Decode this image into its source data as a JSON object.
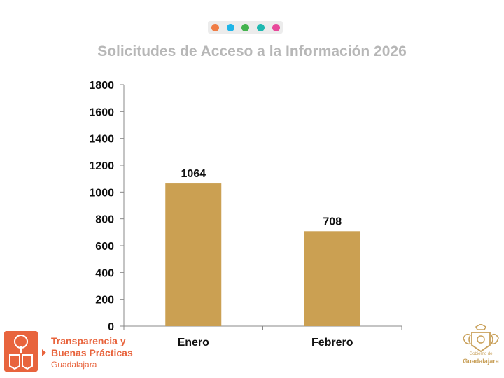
{
  "header": {
    "dot_colors": [
      "#f07d45",
      "#1fb5e8",
      "#44b34e",
      "#1eb8b0",
      "#e8489a"
    ]
  },
  "chart_data": {
    "type": "bar",
    "title": "Solicitudes de Acceso a la Información 2026",
    "categories": [
      "Enero",
      "Febrero"
    ],
    "values": [
      1064,
      708
    ],
    "bar_color": "#cba052",
    "ylim": [
      0,
      1800
    ],
    "yticks": [
      0,
      200,
      400,
      600,
      800,
      1000,
      1200,
      1400,
      1600,
      1800
    ],
    "xlabel": "",
    "ylabel": "",
    "grid": false
  },
  "footer": {
    "left_logo": {
      "line1": "Transparencia y",
      "line2": "Buenas Prácticas",
      "line3": "Guadalajara",
      "color": "#e8643d"
    },
    "right_logo": {
      "small_text": "Gobierno de",
      "big_text": "Guadalajara",
      "color": "#c9a15b"
    }
  }
}
